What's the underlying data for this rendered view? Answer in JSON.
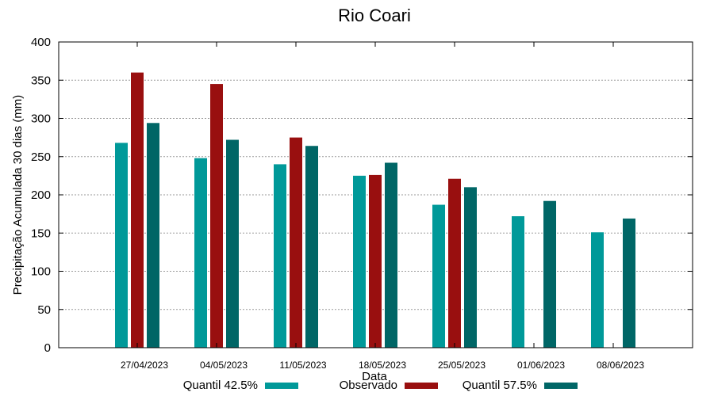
{
  "chart_data": {
    "type": "bar",
    "title": "Rio Coari",
    "xlabel": "Data",
    "ylabel": "Precipitação Acumulada 30 dias (mm)",
    "ylim": [
      0,
      400
    ],
    "yticks": [
      0,
      50,
      100,
      150,
      200,
      250,
      300,
      350,
      400
    ],
    "grid": true,
    "legend_position": "bottom",
    "categories": [
      "27/04/2023",
      "04/05/2023",
      "11/05/2023",
      "18/05/2023",
      "25/05/2023",
      "01/06/2023",
      "08/06/2023"
    ],
    "series": [
      {
        "name": "Quantil 42.5%",
        "color": "#009999",
        "values": [
          268,
          248,
          240,
          225,
          187,
          172,
          151
        ]
      },
      {
        "name": "Observado",
        "color": "#990f0f",
        "values": [
          360,
          345,
          275,
          226,
          221,
          null,
          null
        ]
      },
      {
        "name": "Quantil 57.5%",
        "color": "#006666",
        "values": [
          294,
          272,
          264,
          242,
          210,
          192,
          169
        ]
      }
    ]
  }
}
